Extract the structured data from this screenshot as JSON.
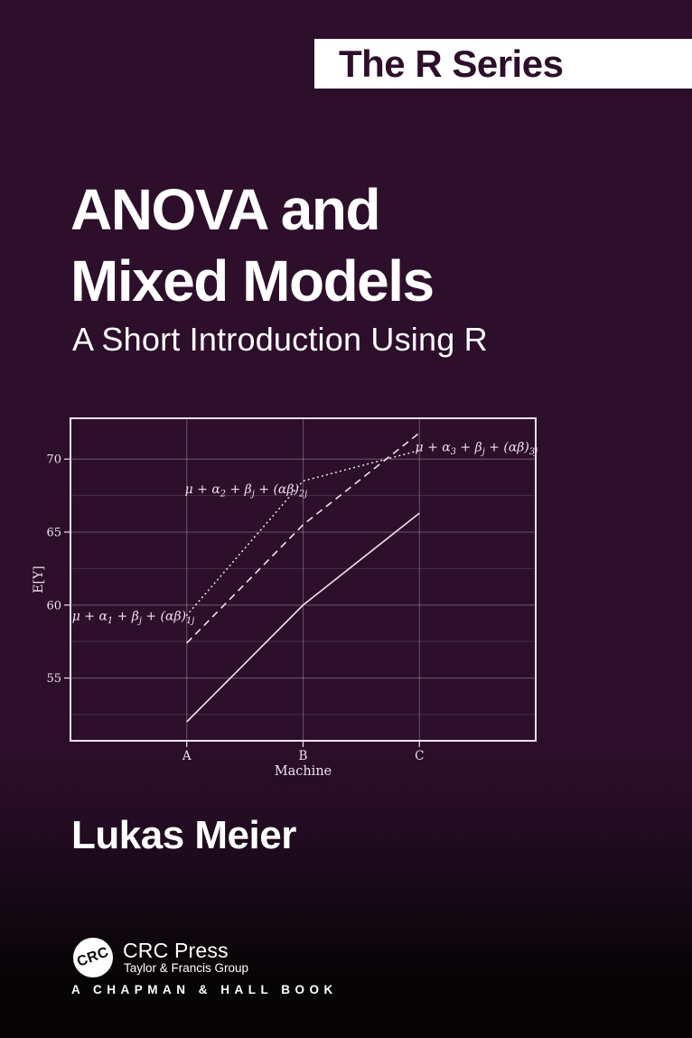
{
  "cover": {
    "series_banner": "The R Series",
    "title_line1": "ANOVA and",
    "title_line2": "Mixed Models",
    "subtitle": "A Short Introduction Using R",
    "author": "Lukas Meier"
  },
  "publisher": {
    "logo_monogram": "CRC",
    "name": "CRC Press",
    "group": "Taylor & Francis Group",
    "imprint_line": "A CHAPMAN & HALL BOOK"
  },
  "colors": {
    "background": "#2d0e2b",
    "background_bottom": "#070406",
    "banner_bg": "#ffffff",
    "banner_text": "#2d0e2b",
    "text": "#ffffff",
    "chart_line": "#eee2ee",
    "grid_major": "rgba(232,218,236,0.32)",
    "grid_minor": "rgba(232,218,236,0.16)"
  },
  "chart_data": {
    "type": "line",
    "title": "",
    "xlabel": "Machine",
    "ylabel": "E[Y]",
    "categories": [
      "A",
      "B",
      "C"
    ],
    "y_ticks": [
      55,
      60,
      65,
      70
    ],
    "y_minor_ticks": [
      52.5,
      57.5,
      62.5,
      67.5
    ],
    "ylim": [
      50.7,
      72.8
    ],
    "grid": true,
    "legend": false,
    "series": [
      {
        "name": "mu + alpha1 + beta_j + (alpha*beta)_1j",
        "style": "solid",
        "values": [
          52.0,
          60.0,
          66.3
        ]
      },
      {
        "name": "mu + alpha2 + beta_j + (alpha*beta)_2j",
        "style": "dotted",
        "values": [
          59.3,
          68.5,
          70.6
        ]
      },
      {
        "name": "mu + alpha3 + beta_j + (alpha*beta)_3j",
        "style": "dashed",
        "values": [
          57.4,
          65.5,
          71.8
        ]
      }
    ],
    "annotations": [
      {
        "text": "μ + α_1_ + β_j_ + (αβ)_1j_",
        "x": 0.54,
        "y": 59.2
      },
      {
        "text": "μ + α_2_ + β_j_ + (αβ)_2j_",
        "x": 1.51,
        "y": 67.9
      },
      {
        "text": "μ + α_3_ + β_j_ + (αβ)_3j_",
        "x": 3.49,
        "y": 70.8
      }
    ]
  }
}
